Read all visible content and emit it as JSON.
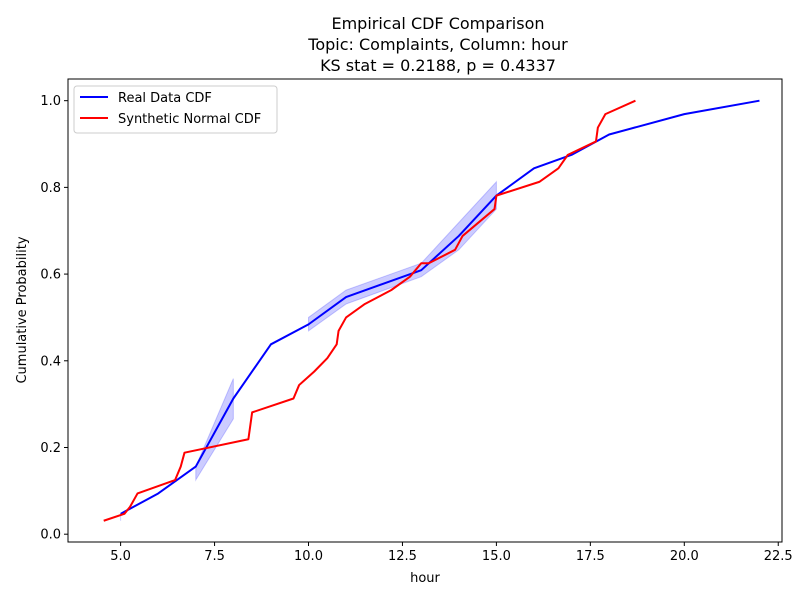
{
  "chart_data": {
    "type": "line",
    "title_lines": [
      "Empirical CDF Comparison",
      "Topic: Complaints, Column: hour",
      "KS stat = 0.2188, p = 0.4337"
    ],
    "xlabel": "hour",
    "ylabel": "Cumulative Probability",
    "xlim": [
      3.6,
      22.6
    ],
    "ylim": [
      -0.018,
      1.05
    ],
    "xticks": [
      5.0,
      7.5,
      10.0,
      12.5,
      15.0,
      17.5,
      20.0,
      22.5
    ],
    "xtick_labels": [
      "5.0",
      "7.5",
      "10.0",
      "12.5",
      "15.0",
      "17.5",
      "20.0",
      "22.5"
    ],
    "yticks": [
      0.0,
      0.2,
      0.4,
      0.6,
      0.8,
      1.0
    ],
    "ytick_labels": [
      "0.0",
      "0.2",
      "0.4",
      "0.6",
      "0.8",
      "1.0"
    ],
    "grid": false,
    "legend_position": "top-left",
    "series": [
      {
        "name": "Real Data CDF",
        "color": "#0000ff",
        "x": [
          5,
          6,
          7,
          8,
          9,
          10,
          11,
          13,
          14,
          15,
          16,
          17,
          18,
          20,
          22
        ],
        "y": [
          0.047,
          0.094,
          0.156,
          0.313,
          0.438,
          0.484,
          0.547,
          0.609,
          0.688,
          0.781,
          0.844,
          0.875,
          0.922,
          0.969,
          1.0
        ],
        "band": {
          "color": "#0000ff",
          "opacity": 0.2,
          "segments": [
            {
              "x": [
                5,
                5
              ],
              "lower": [
                0.031,
                0.031
              ],
              "upper": [
                0.047,
                0.047
              ]
            },
            {
              "x": [
                7,
                8
              ],
              "lower": [
                0.125,
                0.266
              ],
              "upper": [
                0.156,
                0.359
              ]
            },
            {
              "x": [
                10,
                11,
                13,
                14,
                15
              ],
              "lower": [
                0.469,
                0.531,
                0.594,
                0.656,
                0.75
              ],
              "upper": [
                0.5,
                0.563,
                0.625,
                0.719,
                0.813
              ]
            }
          ]
        }
      },
      {
        "name": "Synthetic Normal CDF",
        "color": "#ff0000",
        "x": [
          4.55,
          5.1,
          5.25,
          5.45,
          6.45,
          6.6,
          6.7,
          8.4,
          8.45,
          8.5,
          9.6,
          9.75,
          10.15,
          10.5,
          10.75,
          10.8,
          11.0,
          11.5,
          12.2,
          12.7,
          13.0,
          13.2,
          13.9,
          14.1,
          14.95,
          15.0,
          16.15,
          16.65,
          16.9,
          17.65,
          17.7,
          17.9,
          18.7
        ],
        "y": [
          0.031,
          0.047,
          0.063,
          0.094,
          0.125,
          0.156,
          0.188,
          0.219,
          0.25,
          0.281,
          0.313,
          0.344,
          0.375,
          0.406,
          0.438,
          0.469,
          0.5,
          0.531,
          0.563,
          0.594,
          0.625,
          0.625,
          0.656,
          0.688,
          0.75,
          0.781,
          0.813,
          0.844,
          0.875,
          0.906,
          0.938,
          0.969,
          1.0
        ]
      }
    ]
  }
}
